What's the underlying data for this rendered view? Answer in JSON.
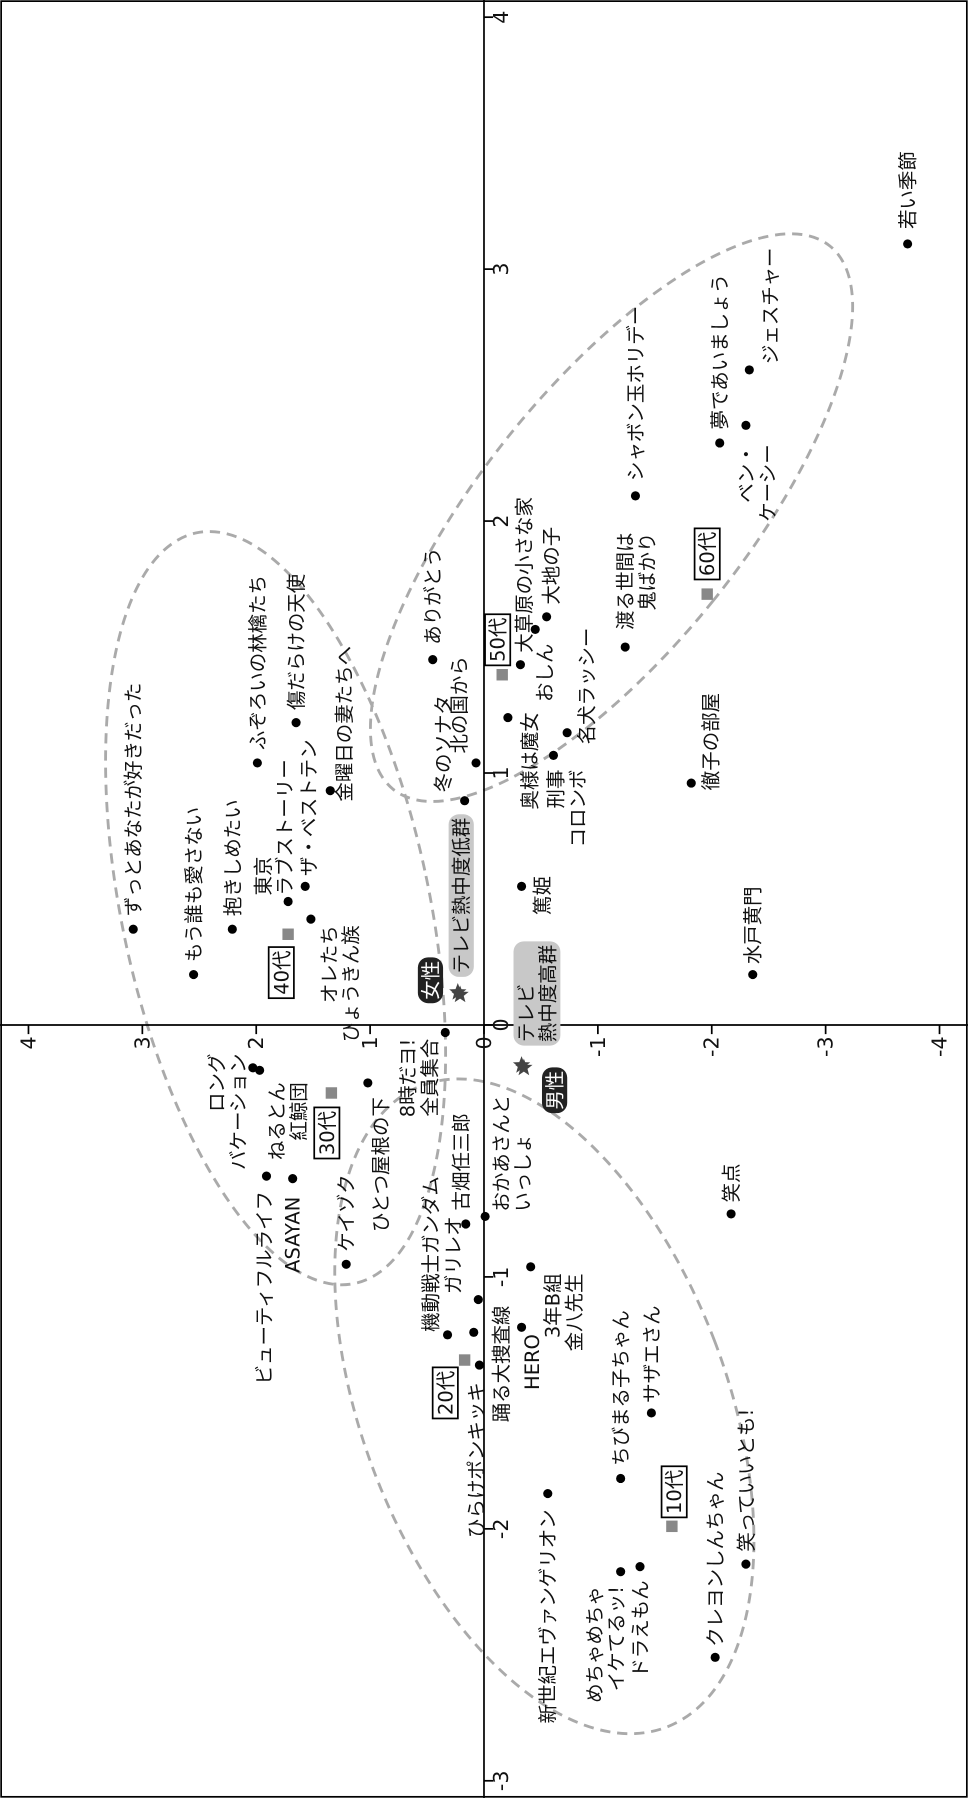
{
  "chart_data": {
    "type": "scatter",
    "xlim": [
      -3,
      4
    ],
    "xticks": [
      -3,
      -2,
      -1,
      0,
      1,
      2,
      3,
      4
    ],
    "ylim": [
      -4,
      4
    ],
    "yticks": [
      -4,
      -3,
      -2,
      -1,
      0,
      1,
      2,
      3,
      4
    ],
    "series": [
      {
        "marker": "circle",
        "color": "#000000",
        "labels": [
          "若い季節",
          "夢であいましょう",
          "ジェスチャー",
          "ベン・\nケーシー",
          "シャボン玉ホリデー",
          "渡る世間は\n鬼ばかり",
          "大地の子",
          "大草原の小さな家",
          "おしん",
          "ありがとう",
          "北の国から",
          "冬のソナタ",
          "奥様は魔女",
          "名犬ラッシー",
          "刑事\nコロンボ",
          "徹子の部屋",
          "篤姫",
          "水戸黄門",
          "ずっとあなたが好きだった",
          "もう誰も愛さない",
          "抱きしめたい",
          "東京\nラブストーリー",
          "ザ・ベストテン",
          "オレたち\nひょうきん族",
          "ふぞろいの林檎たち",
          "傷だらけの天使",
          "金曜日の妻たちへ",
          "ロング\nバケーション",
          "ねるとん\n紅鯨団",
          "ひとつ屋根の下",
          "8時だヨ!\n全員集合",
          "ビューティフルライフ",
          "ASAYAN",
          "ケイゾク",
          "おかあさんと\nいっしょ",
          "古畑任三郎",
          "ガリレオ",
          "機動戦士ガンダム",
          "3年B組\n金八先生",
          "HERO",
          "踊る大捜査線",
          "ひらけポンキッキ",
          "ちびまる子ちゃん",
          "サザエさん",
          "笑点",
          "新世紀エヴァンゲリオン",
          "めちゃめちゃ\nイケてるッ!",
          "ドラえもん",
          "笑っていいとも!",
          "クレヨンしんちゃん"
        ],
        "x": [
          3.1,
          2.31,
          2.6,
          2.38,
          2.1,
          1.5,
          1.62,
          1.43,
          1.57,
          1.45,
          1.04,
          0.89,
          1.22,
          1.16,
          1.07,
          0.96,
          0.55,
          0.2,
          0.38,
          0.2,
          0.38,
          0.49,
          0.55,
          0.42,
          1.04,
          1.2,
          0.93,
          -0.17,
          -0.18,
          -0.23,
          -0.03,
          -0.6,
          -0.61,
          -0.95,
          -0.76,
          -0.79,
          -1.09,
          -1.23,
          -0.96,
          -1.2,
          -1.22,
          -1.35,
          -1.8,
          -1.54,
          -0.75,
          -1.86,
          -2.17,
          -2.15,
          -2.14,
          -2.51
        ],
        "y": [
          -3.72,
          -2.07,
          -2.33,
          -2.3,
          -1.33,
          -1.24,
          -0.55,
          -0.32,
          -0.45,
          0.45,
          0.07,
          0.17,
          -0.21,
          -0.73,
          -0.61,
          -1.82,
          -0.33,
          -2.36,
          3.08,
          2.55,
          2.21,
          1.72,
          1.57,
          1.52,
          1.99,
          1.65,
          1.35,
          2.03,
          1.97,
          1.02,
          0.34,
          1.91,
          1.68,
          1.21,
          -0.01,
          0.16,
          0.05,
          0.32,
          -0.41,
          -0.33,
          0.09,
          0.04,
          -1.2,
          -1.47,
          -2.17,
          -0.56,
          -1.2,
          -1.37,
          -2.3,
          -2.03
        ]
      },
      {
        "marker": "square",
        "color": "#888888",
        "label_frame": "#000000",
        "labels": [
          "10代",
          "20代",
          "30代",
          "40代",
          "50代",
          "60代"
        ],
        "x": [
          -1.99,
          -1.33,
          -0.27,
          0.36,
          1.39,
          1.71
        ],
        "y": [
          -1.65,
          0.17,
          1.34,
          1.72,
          -0.16,
          -1.96
        ]
      },
      {
        "marker": "star",
        "color": "#444444",
        "label_fill": [
          "#222222",
          "#c8c8c8",
          "#222222",
          "#c8c8c8"
        ],
        "labels": [
          "女性",
          "テレビ熱中度低群",
          "男性",
          "テレビ\n熱中度高群"
        ],
        "x": [
          0.13,
          0.12,
          -0.17,
          -0.16
        ],
        "y": [
          0.23,
          0.21,
          -0.35,
          -0.33
        ]
      }
    ]
  }
}
